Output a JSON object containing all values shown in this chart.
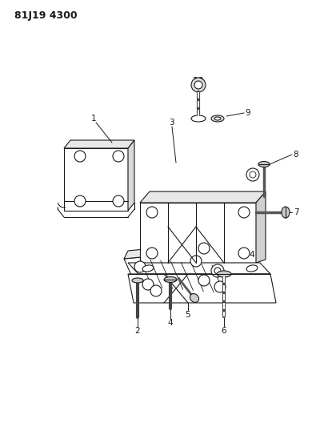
{
  "title": "81J19 4300",
  "background_color": "#ffffff",
  "line_color": "#1a1a1a",
  "figsize": [
    4.06,
    5.33
  ],
  "dpi": 100,
  "title_fontsize": 9,
  "label_fontsize": 7.5
}
